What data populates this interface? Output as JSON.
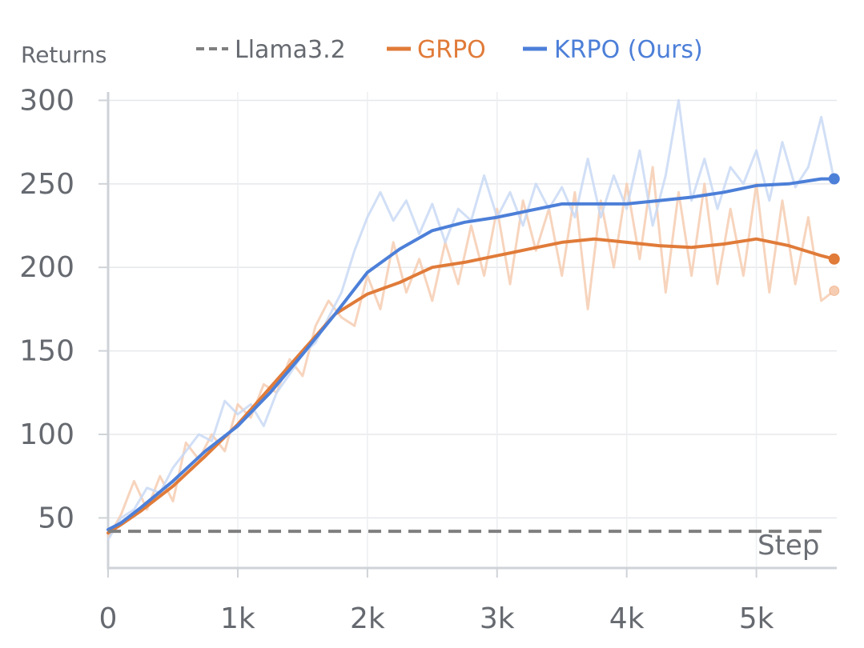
{
  "chart_data": {
    "type": "line",
    "ylabel": "Returns",
    "xlabel": "Step",
    "xlim": [
      0,
      5620
    ],
    "ylim": [
      20,
      305
    ],
    "xticks": [
      0,
      1000,
      2000,
      3000,
      4000,
      5000
    ],
    "xtick_labels": [
      "0",
      "1k",
      "2k",
      "3k",
      "4k",
      "5k"
    ],
    "yticks": [
      50,
      100,
      150,
      200,
      250,
      300
    ],
    "ytick_labels": [
      "50",
      "100",
      "150",
      "200",
      "250",
      "300"
    ],
    "grid": true,
    "legend": {
      "position": "top",
      "entries": [
        {
          "label": "Llama3.2",
          "color": "#7f7f7f",
          "style": "dashed"
        },
        {
          "label": "GRPO",
          "color": "#e07b39",
          "style": "solid"
        },
        {
          "label": "KRPO (Ours)",
          "color": "#4c7fd8",
          "style": "solid"
        }
      ]
    },
    "baseline": {
      "name": "Llama3.2",
      "value": 42,
      "color": "#7f7f7f"
    },
    "series": [
      {
        "name": "KRPO (Ours)",
        "color": "#4c7fd8",
        "raw_color": "#c9d9f5",
        "smoothed": [
          [
            0,
            43
          ],
          [
            100,
            47
          ],
          [
            250,
            56
          ],
          [
            500,
            72
          ],
          [
            750,
            90
          ],
          [
            1000,
            105
          ],
          [
            1250,
            125
          ],
          [
            1500,
            148
          ],
          [
            1750,
            172
          ],
          [
            2000,
            197
          ],
          [
            2250,
            211
          ],
          [
            2500,
            222
          ],
          [
            2750,
            227
          ],
          [
            3000,
            230
          ],
          [
            3250,
            234
          ],
          [
            3500,
            238
          ],
          [
            3750,
            238
          ],
          [
            4000,
            238
          ],
          [
            4250,
            240
          ],
          [
            4500,
            242
          ],
          [
            4750,
            245
          ],
          [
            5000,
            249
          ],
          [
            5250,
            250
          ],
          [
            5500,
            253
          ],
          [
            5600,
            253
          ]
        ],
        "raw": [
          [
            0,
            37
          ],
          [
            100,
            50
          ],
          [
            200,
            55
          ],
          [
            300,
            68
          ],
          [
            400,
            65
          ],
          [
            500,
            80
          ],
          [
            600,
            90
          ],
          [
            700,
            100
          ],
          [
            800,
            96
          ],
          [
            900,
            120
          ],
          [
            1000,
            112
          ],
          [
            1100,
            118
          ],
          [
            1200,
            105
          ],
          [
            1300,
            125
          ],
          [
            1400,
            136
          ],
          [
            1500,
            148
          ],
          [
            1600,
            155
          ],
          [
            1700,
            170
          ],
          [
            1800,
            185
          ],
          [
            1900,
            210
          ],
          [
            2000,
            230
          ],
          [
            2100,
            245
          ],
          [
            2200,
            228
          ],
          [
            2300,
            240
          ],
          [
            2400,
            220
          ],
          [
            2500,
            238
          ],
          [
            2600,
            215
          ],
          [
            2700,
            235
          ],
          [
            2800,
            228
          ],
          [
            2900,
            255
          ],
          [
            3000,
            230
          ],
          [
            3100,
            245
          ],
          [
            3200,
            225
          ],
          [
            3300,
            250
          ],
          [
            3400,
            235
          ],
          [
            3500,
            248
          ],
          [
            3600,
            230
          ],
          [
            3700,
            265
          ],
          [
            3800,
            230
          ],
          [
            3900,
            255
          ],
          [
            4000,
            235
          ],
          [
            4100,
            270
          ],
          [
            4200,
            225
          ],
          [
            4300,
            255
          ],
          [
            4400,
            300
          ],
          [
            4500,
            240
          ],
          [
            4600,
            265
          ],
          [
            4700,
            235
          ],
          [
            4800,
            260
          ],
          [
            4900,
            250
          ],
          [
            5000,
            270
          ],
          [
            5100,
            240
          ],
          [
            5200,
            275
          ],
          [
            5300,
            248
          ],
          [
            5400,
            260
          ],
          [
            5500,
            290
          ],
          [
            5600,
            252
          ]
        ],
        "end_value": 253
      },
      {
        "name": "GRPO",
        "color": "#e07b39",
        "raw_color": "#f6cdb2",
        "smoothed": [
          [
            0,
            41
          ],
          [
            100,
            46
          ],
          [
            250,
            54
          ],
          [
            500,
            69
          ],
          [
            750,
            87
          ],
          [
            1000,
            106
          ],
          [
            1250,
            128
          ],
          [
            1500,
            150
          ],
          [
            1750,
            172
          ],
          [
            2000,
            184
          ],
          [
            2250,
            191
          ],
          [
            2500,
            200
          ],
          [
            2750,
            203
          ],
          [
            3000,
            207
          ],
          [
            3250,
            211
          ],
          [
            3500,
            215
          ],
          [
            3750,
            217
          ],
          [
            4000,
            215
          ],
          [
            4250,
            213
          ],
          [
            4500,
            212
          ],
          [
            4750,
            214
          ],
          [
            5000,
            217
          ],
          [
            5250,
            213
          ],
          [
            5500,
            207
          ],
          [
            5600,
            205
          ]
        ],
        "raw": [
          [
            0,
            38
          ],
          [
            100,
            52
          ],
          [
            200,
            72
          ],
          [
            300,
            55
          ],
          [
            400,
            75
          ],
          [
            500,
            60
          ],
          [
            600,
            95
          ],
          [
            700,
            85
          ],
          [
            800,
            100
          ],
          [
            900,
            90
          ],
          [
            1000,
            118
          ],
          [
            1100,
            110
          ],
          [
            1200,
            130
          ],
          [
            1300,
            125
          ],
          [
            1400,
            145
          ],
          [
            1500,
            135
          ],
          [
            1600,
            165
          ],
          [
            1700,
            180
          ],
          [
            1800,
            170
          ],
          [
            1900,
            165
          ],
          [
            2000,
            195
          ],
          [
            2100,
            175
          ],
          [
            2200,
            215
          ],
          [
            2300,
            185
          ],
          [
            2400,
            205
          ],
          [
            2500,
            180
          ],
          [
            2600,
            215
          ],
          [
            2700,
            190
          ],
          [
            2800,
            225
          ],
          [
            2900,
            195
          ],
          [
            3000,
            235
          ],
          [
            3100,
            190
          ],
          [
            3200,
            240
          ],
          [
            3300,
            210
          ],
          [
            3400,
            235
          ],
          [
            3500,
            195
          ],
          [
            3600,
            245
          ],
          [
            3700,
            175
          ],
          [
            3800,
            240
          ],
          [
            3900,
            200
          ],
          [
            4000,
            250
          ],
          [
            4100,
            205
          ],
          [
            4200,
            260
          ],
          [
            4300,
            185
          ],
          [
            4400,
            245
          ],
          [
            4500,
            195
          ],
          [
            4600,
            250
          ],
          [
            4700,
            190
          ],
          [
            4800,
            235
          ],
          [
            4900,
            195
          ],
          [
            5000,
            250
          ],
          [
            5100,
            185
          ],
          [
            5200,
            240
          ],
          [
            5300,
            190
          ],
          [
            5400,
            230
          ],
          [
            5500,
            180
          ],
          [
            5600,
            186
          ]
        ],
        "end_value": 205,
        "raw_end_value": 186
      }
    ]
  }
}
